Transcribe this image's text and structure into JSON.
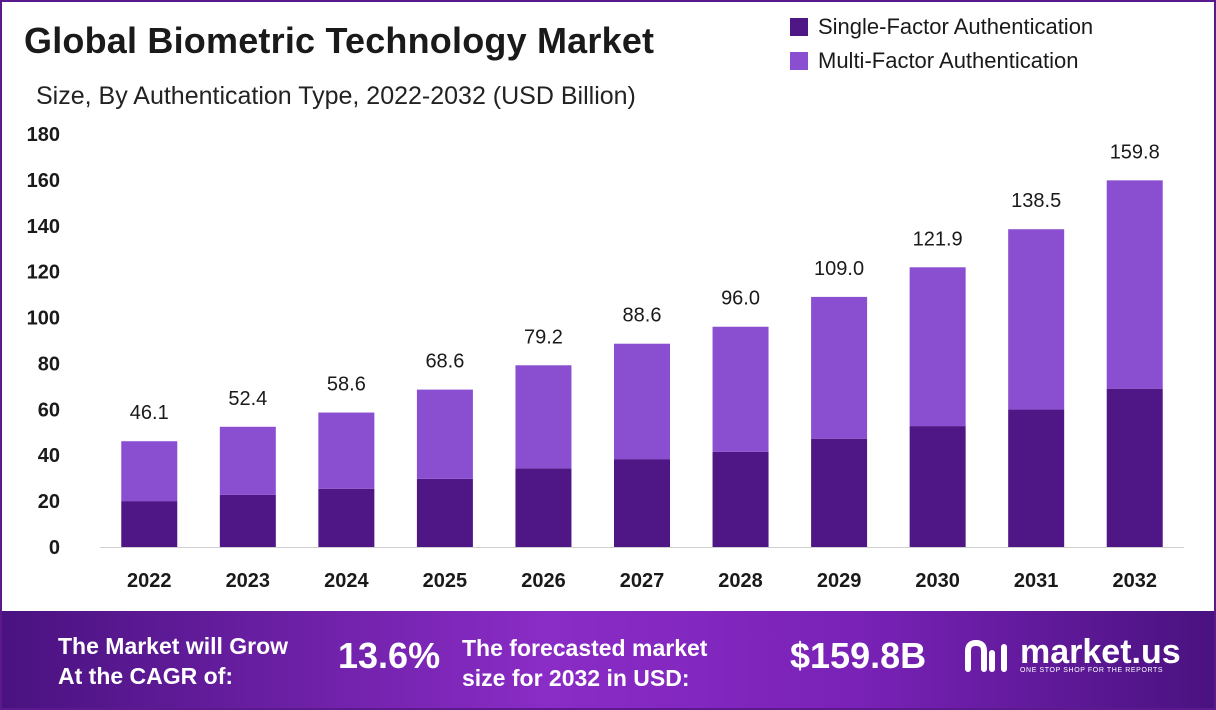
{
  "header": {
    "title": "Global Biometric Technology Market",
    "subtitle": "Size, By Authentication Type, 2022-2032 (USD Billion)"
  },
  "colors": {
    "single_factor": "#4f1785",
    "multi_factor": "#8a4fd0",
    "frame": "#5a1a8c"
  },
  "chart_data": {
    "type": "bar",
    "stacked": true,
    "categories": [
      "2022",
      "2023",
      "2024",
      "2025",
      "2026",
      "2027",
      "2028",
      "2029",
      "2030",
      "2031",
      "2032"
    ],
    "series": [
      {
        "name": "Single-Factor Authentication",
        "values": [
          20.0,
          22.7,
          25.4,
          29.7,
          34.3,
          38.3,
          41.5,
          47.2,
          52.7,
          59.9,
          69.0
        ]
      },
      {
        "name": "Multi-Factor Authentication",
        "values": [
          26.1,
          29.7,
          33.2,
          38.9,
          44.9,
          50.3,
          54.5,
          61.8,
          69.2,
          78.6,
          90.8
        ]
      }
    ],
    "totals": [
      "46.1",
      "52.4",
      "58.6",
      "68.6",
      "79.2",
      "88.6",
      "96.0",
      "109.0",
      "121.9",
      "138.5",
      "159.8"
    ],
    "yticks": [
      "0",
      "20",
      "40",
      "60",
      "80",
      "100",
      "120",
      "140",
      "160",
      "180"
    ],
    "ylim": [
      0,
      180
    ],
    "grid": false,
    "legend_position": "top-right"
  },
  "footer": {
    "cagr_label_1": "The Market will Grow",
    "cagr_label_2": "At the CAGR of:",
    "cagr_value": "13.6%",
    "forecast_label_1": "The forecasted market",
    "forecast_label_2": "size for 2032 in USD:",
    "forecast_value": "$159.8B"
  },
  "logo": {
    "name": "market.us",
    "tagline": "ONE STOP SHOP FOR THE REPORTS"
  }
}
